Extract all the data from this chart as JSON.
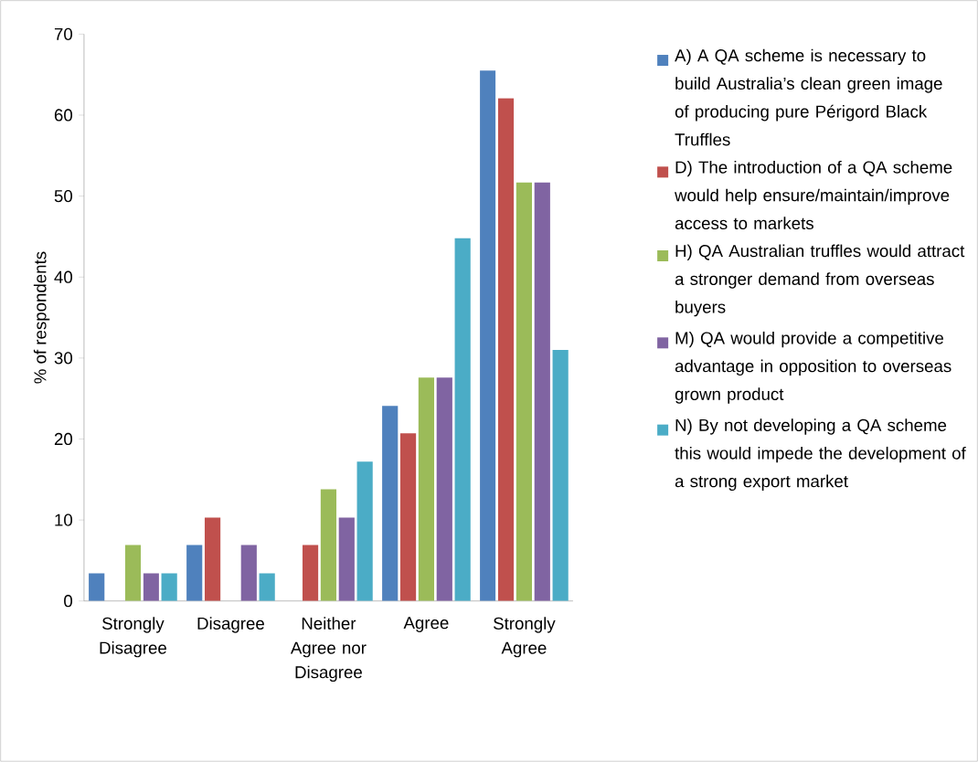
{
  "chart_data": {
    "type": "bar",
    "ylabel": "% of respondents",
    "categories": [
      "Strongly Disagree",
      "Disagree",
      "Neither Agree nor Disagree",
      "Agree",
      "Strongly Agree"
    ],
    "series": [
      {
        "name": "A) A QA scheme is necessary to build Australia’s clean green image of producing pure Périgord Black Truffles",
        "color": "#4f81bd",
        "values": [
          3.4,
          6.9,
          0,
          24.1,
          65.5
        ]
      },
      {
        "name": "D) The introduction of a QA scheme would help ensure/maintain/improve access to markets",
        "color": "#c0504d",
        "values": [
          0,
          10.3,
          6.9,
          20.7,
          62.1
        ]
      },
      {
        "name": "H) QA Australian truffles would attract a stronger demand from overseas buyers",
        "color": "#9bbb59",
        "values": [
          6.9,
          0,
          13.8,
          27.6,
          51.7
        ]
      },
      {
        "name": "M) QA would provide a competitive advantage in opposition to overseas grown product",
        "color": "#8064a2",
        "values": [
          3.4,
          6.9,
          10.3,
          27.6,
          51.7
        ]
      },
      {
        "name": "N) By not developing a QA scheme this would impede the development of a strong export market",
        "color": "#4bacc6",
        "values": [
          3.4,
          3.4,
          17.2,
          44.8,
          31.0
        ]
      }
    ],
    "ylim": [
      0,
      70
    ],
    "yticks": [
      0,
      10,
      20,
      30,
      40,
      50,
      60,
      70
    ],
    "grid": false,
    "legend": "right"
  }
}
